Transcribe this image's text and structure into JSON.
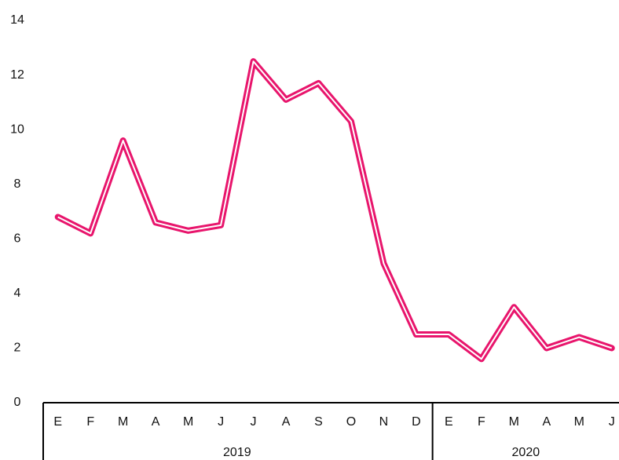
{
  "chart_data": {
    "type": "line",
    "groups": [
      {
        "label": "2019",
        "categories": [
          "E",
          "F",
          "M",
          "A",
          "M",
          "J",
          "J",
          "A",
          "S",
          "O",
          "N",
          "D"
        ]
      },
      {
        "label": "2020",
        "categories": [
          "E",
          "F",
          "M",
          "A",
          "M",
          "J"
        ]
      }
    ],
    "series": [
      {
        "color": "#e8156c",
        "values": [
          6.8,
          6.2,
          9.6,
          6.6,
          6.3,
          6.5,
          12.5,
          11.1,
          11.7,
          10.3,
          5.1,
          2.5,
          2.5,
          1.6,
          3.5,
          2.0,
          2.4,
          2.0
        ]
      }
    ],
    "ylim": [
      0,
      14
    ],
    "yticks": [
      0,
      2,
      4,
      6,
      8,
      10,
      12,
      14
    ],
    "grid": false
  }
}
